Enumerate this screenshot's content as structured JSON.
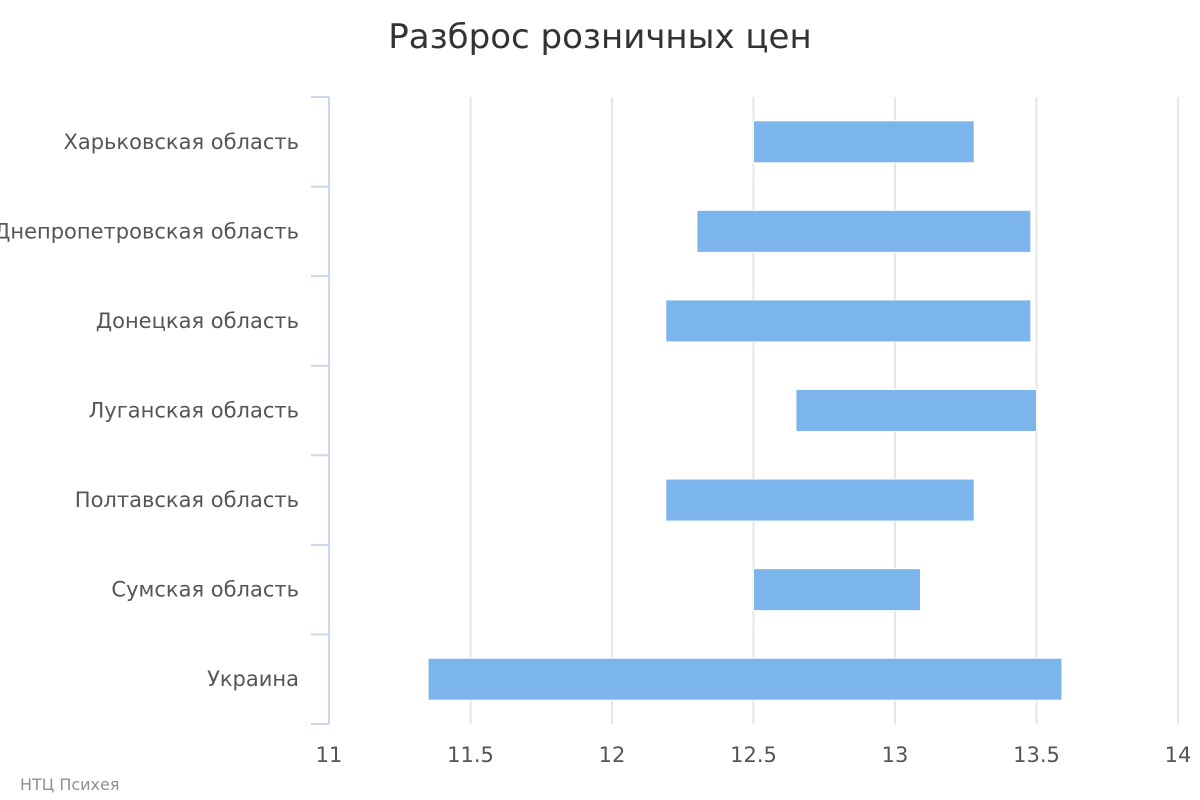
{
  "chart_data": {
    "type": "bar",
    "orientation": "horizontal",
    "title": "Разброс розничных цен",
    "xlabel": "",
    "ylabel": "",
    "xlim": [
      11,
      14
    ],
    "x_ticks": [
      11,
      11.5,
      12,
      12.5,
      13,
      13.5,
      14
    ],
    "grid": true,
    "categories": [
      "Харьковская область",
      "Днепропетровская область",
      "Донецкая область",
      "Луганская область",
      "Полтавская область",
      "Сумская область",
      "Украина"
    ],
    "ranges": [
      [
        12.5,
        13.28
      ],
      [
        12.3,
        13.48
      ],
      [
        12.19,
        13.48
      ],
      [
        12.65,
        13.5
      ],
      [
        12.19,
        13.28
      ],
      [
        12.5,
        13.09
      ],
      [
        11.35,
        13.59
      ]
    ],
    "bar_color": "#7cb5ec",
    "grid_color": "#e6e6e6",
    "axis_color": "#ccd6eb"
  },
  "credits": "НТЦ Психея"
}
